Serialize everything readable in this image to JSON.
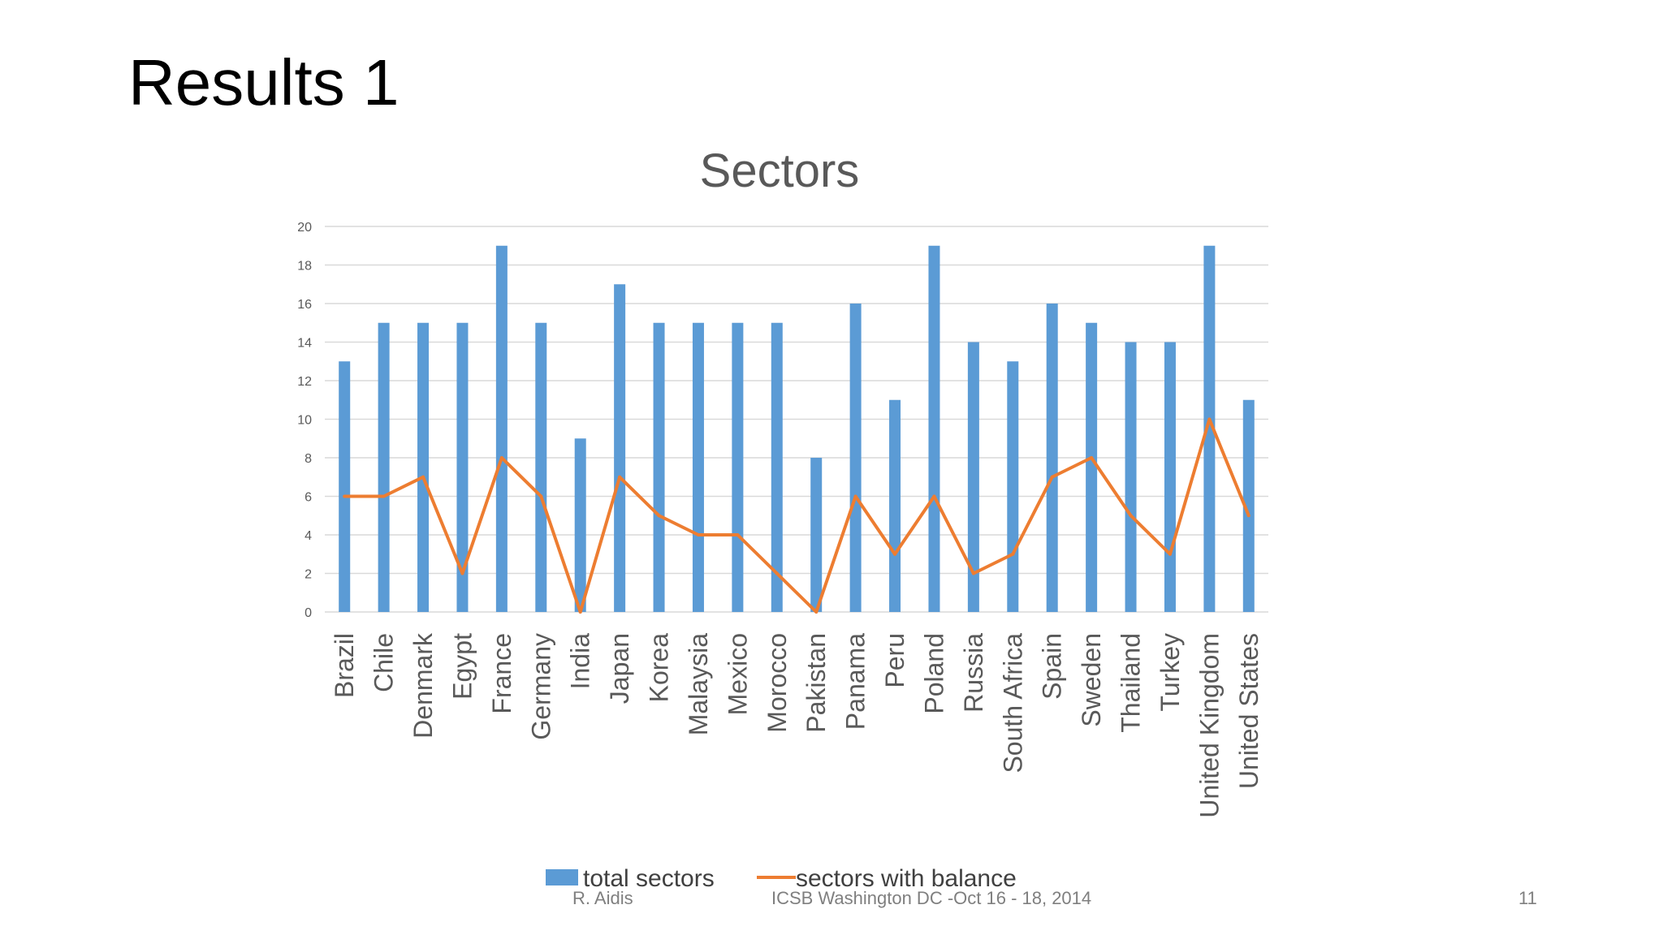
{
  "slide": {
    "title": "Results 1",
    "footer_author": "R. Aidis",
    "footer_event": "ICSB Washington DC -Oct 16 - 18, 2014",
    "page_number": "11"
  },
  "chart_data": {
    "type": "bar",
    "title": "Sectors",
    "xlabel": "",
    "ylabel": "",
    "ylim": [
      0,
      20
    ],
    "yticks": [
      0,
      2,
      4,
      6,
      8,
      10,
      12,
      14,
      16,
      18,
      20
    ],
    "grid": true,
    "legend_position": "bottom",
    "categories": [
      "Brazil",
      "Chile",
      "Denmark",
      "Egypt",
      "France",
      "Germany",
      "India",
      "Japan",
      "Korea",
      "Malaysia",
      "Mexico",
      "Morocco",
      "Pakistan",
      "Panama",
      "Peru",
      "Poland",
      "Russia",
      "South Africa",
      "Spain",
      "Sweden",
      "Thailand",
      "Turkey",
      "United  Kingdom",
      "United States"
    ],
    "series": [
      {
        "name": "total sectors",
        "type": "bar",
        "color": "#5b9bd5",
        "values": [
          13,
          15,
          15,
          15,
          19,
          15,
          9,
          17,
          15,
          15,
          15,
          15,
          8,
          16,
          11,
          19,
          14,
          13,
          16,
          15,
          14,
          14,
          19,
          11
        ]
      },
      {
        "name": "sectors with balance",
        "type": "line",
        "color": "#ed7d31",
        "values": [
          6,
          6,
          7,
          2,
          8,
          6,
          0,
          7,
          5,
          4,
          4,
          2,
          0,
          6,
          3,
          6,
          2,
          3,
          7,
          8,
          5,
          3,
          10,
          5
        ]
      }
    ]
  }
}
